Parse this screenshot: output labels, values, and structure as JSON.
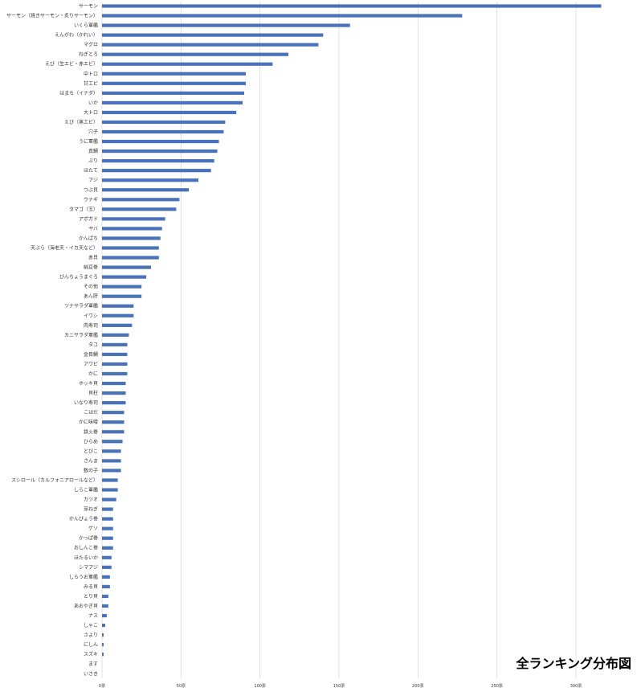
{
  "chart_data": {
    "type": "bar",
    "orientation": "horizontal",
    "title": "全ランキング分布図",
    "xlabel": "",
    "ylabel": "",
    "xlim": [
      0,
      330
    ],
    "x_ticks": [
      0,
      50,
      100,
      150,
      200,
      250,
      300
    ],
    "x_tick_labels": [
      "0票",
      "50票",
      "100票",
      "150票",
      "200票",
      "250票",
      "300票"
    ],
    "grid": true,
    "bar_color": "#4a72b8",
    "categories": [
      "サーモン",
      "サーモン（焼きサーモン・炙りサーモン）",
      "いくら軍艦",
      "えんがわ（かれい）",
      "マグロ",
      "ねぎとろ",
      "えび（生エビ・赤エビ）",
      "中トロ",
      "甘エビ",
      "はまち（イナダ）",
      "いか",
      "大トロ",
      "えび（蒸エビ）",
      "穴子",
      "うに軍艦",
      "真鯛",
      "ぶり",
      "ほたて",
      "アジ",
      "つぶ貝",
      "ウナギ",
      "タマゴ（玉）",
      "アボガド",
      "サバ",
      "かんぱち",
      "天ぷら（海老天・イカ天など）",
      "赤貝",
      "納豆巻",
      "びんちょうまぐろ",
      "その他",
      "あん肝",
      "ツナサラダ軍艦",
      "イワシ",
      "肉寿司",
      "カニサラダ軍艦",
      "タコ",
      "金目鯛",
      "アワビ",
      "かに",
      "ホッキ貝",
      "貝柱",
      "いなり寿司",
      "こはだ",
      "かに味噌",
      "鉄火巻",
      "ひらめ",
      "とびこ",
      "さんま",
      "数の子",
      "スシロール（カルフォニアロールなど）",
      "しらこ軍艦",
      "カツオ",
      "芽ねぎ",
      "かんぴょう巻",
      "ゲソ",
      "かっぱ巻",
      "おしんこ巻",
      "ほたるいか",
      "シマアジ",
      "しらうお軍艦",
      "みる貝",
      "とり貝",
      "あおやぎ貝",
      "ナス",
      "しゃこ",
      "さより",
      "にしん",
      "スズキ",
      "ます",
      "いさき"
    ],
    "values": [
      316,
      228,
      157,
      140,
      137,
      118,
      108,
      91,
      91,
      90,
      89,
      85,
      78,
      77,
      74,
      73,
      71,
      69,
      61,
      55,
      49,
      47,
      40,
      38,
      37,
      36,
      36,
      31,
      28,
      25,
      25,
      20,
      20,
      19,
      17,
      16,
      16,
      16,
      16,
      15,
      15,
      15,
      14,
      14,
      14,
      13,
      12,
      12,
      12,
      10,
      10,
      9,
      7,
      7,
      7,
      7,
      7,
      6,
      6,
      5,
      5,
      4,
      4,
      3,
      2,
      1,
      1,
      1,
      0,
      0
    ]
  }
}
